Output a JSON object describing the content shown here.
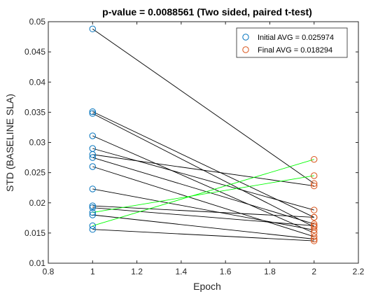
{
  "chart_data": {
    "type": "scatter",
    "title": "p-value = 0.0088561  (Two sided, paired t-test)",
    "xlabel": "Epoch",
    "ylabel": "STD (BASELINE SLA)",
    "xlim": [
      0.8,
      2.2
    ],
    "ylim": [
      0.01,
      0.05
    ],
    "xticks": [
      "0.8",
      "1",
      "1.2",
      "1.4",
      "1.6",
      "1.8",
      "2",
      "2.2"
    ],
    "yticks": [
      "0.01",
      "0.015",
      "0.02",
      "0.025",
      "0.03",
      "0.035",
      "0.04",
      "0.045",
      "0.05"
    ],
    "grid": false,
    "legend_position": "top-right",
    "series": [
      {
        "name": "Initial AVG = 0.025974",
        "x": 1,
        "color": "#0072BD"
      },
      {
        "name": "Final AVG = 0.018294",
        "x": 2,
        "color": "#D95319"
      }
    ],
    "pairs": [
      {
        "initial": 0.0488,
        "final": 0.0232,
        "increase": false
      },
      {
        "initial": 0.0351,
        "final": 0.0176,
        "increase": false
      },
      {
        "initial": 0.0348,
        "final": 0.016,
        "increase": false
      },
      {
        "initial": 0.0311,
        "final": 0.015,
        "increase": false
      },
      {
        "initial": 0.029,
        "final": 0.0188,
        "increase": false
      },
      {
        "initial": 0.028,
        "final": 0.0228,
        "increase": false
      },
      {
        "initial": 0.0275,
        "final": 0.0165,
        "increase": false
      },
      {
        "initial": 0.026,
        "final": 0.0144,
        "increase": false
      },
      {
        "initial": 0.0223,
        "final": 0.0155,
        "increase": false
      },
      {
        "initial": 0.0195,
        "final": 0.0176,
        "increase": false
      },
      {
        "initial": 0.0192,
        "final": 0.0162,
        "increase": false
      },
      {
        "initial": 0.0184,
        "final": 0.0245,
        "increase": true
      },
      {
        "initial": 0.018,
        "final": 0.014,
        "increase": false
      },
      {
        "initial": 0.0162,
        "final": 0.0272,
        "increase": true
      },
      {
        "initial": 0.0156,
        "final": 0.0137,
        "increase": false
      }
    ],
    "pair_line_color": "#000000",
    "increase_line_color": "#00FF00"
  }
}
